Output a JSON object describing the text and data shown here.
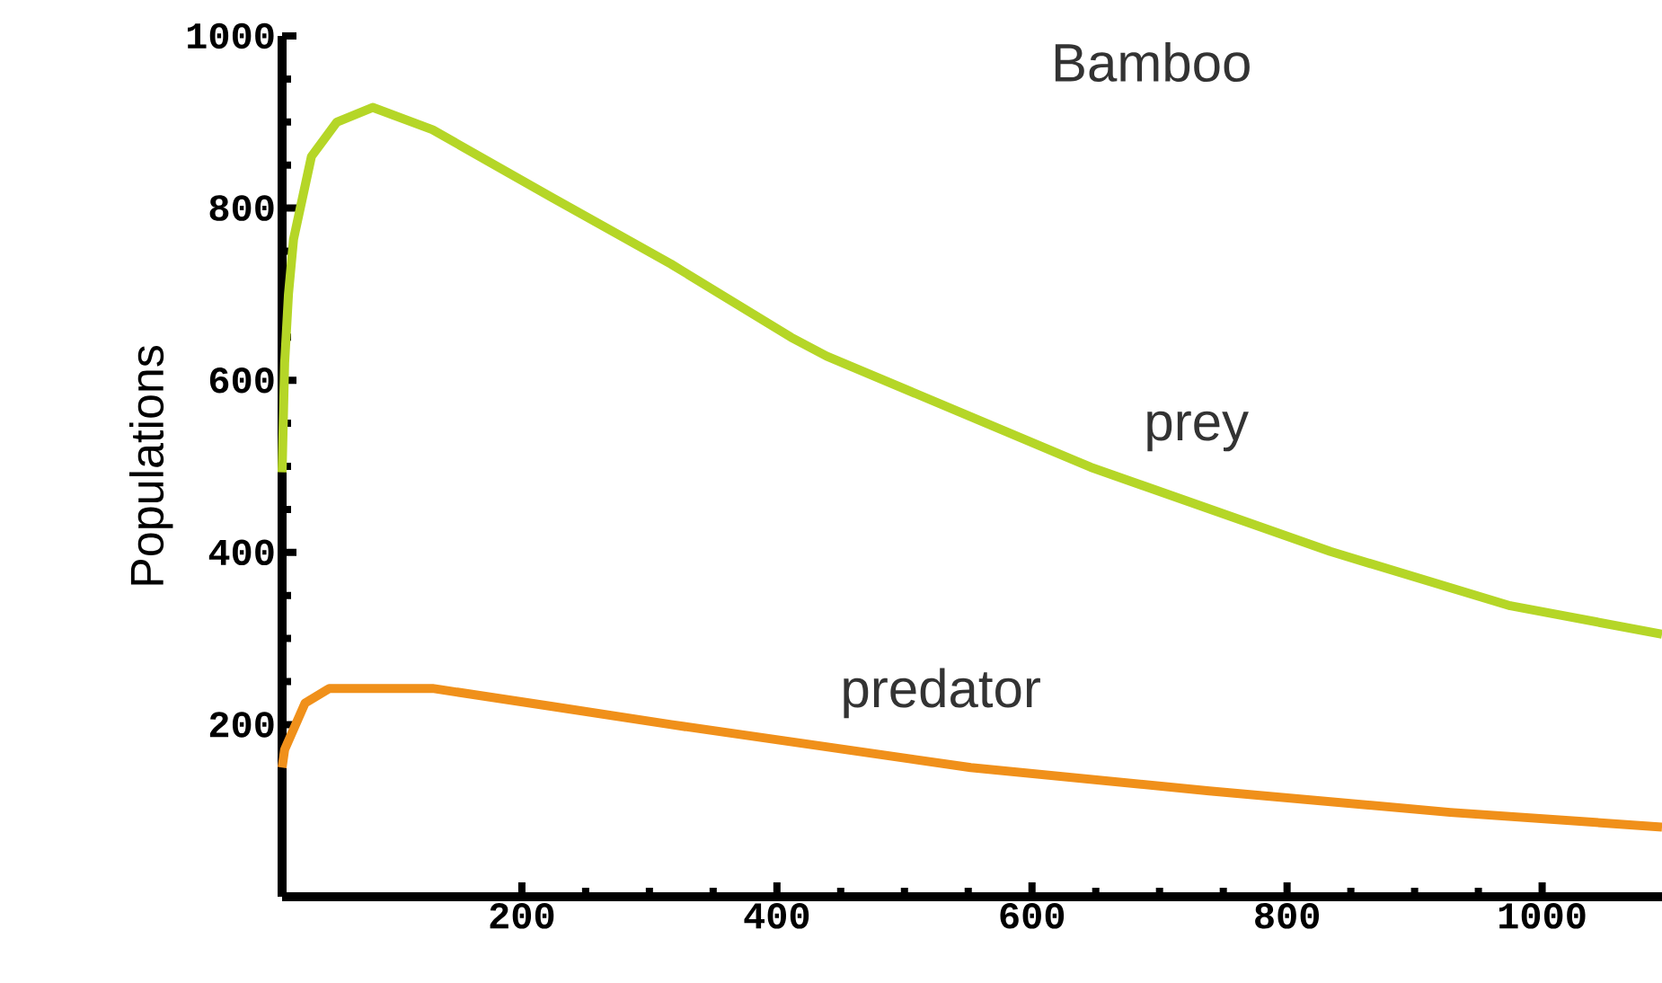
{
  "chart_data": {
    "type": "line",
    "title": "Bamboo",
    "ylabel": "Populations",
    "xlim": [
      12,
      1094
    ],
    "ylim": [
      0,
      1000
    ],
    "xticks": [
      200,
      400,
      600,
      800,
      1000
    ],
    "yticks": [
      200,
      400,
      600,
      800,
      1000
    ],
    "grid": false,
    "legend": false,
    "marker": "none",
    "line_style": "solid",
    "series": [
      {
        "name": "prey",
        "color": "#b5d627",
        "x": [
          12,
          14,
          17,
          21,
          35,
          55,
          83,
          130,
          224,
          317,
          411,
          439,
          646,
          834,
          975,
          1094
        ],
        "values": [
          493,
          620,
          700,
          764,
          860,
          900,
          917,
          891,
          812,
          735,
          650,
          628,
          499,
          401,
          338,
          305
        ]
      },
      {
        "name": "predator",
        "color": "#f0901a",
        "x": [
          12,
          14,
          30,
          49,
          130,
          224,
          317,
          435,
          552,
          739,
          928,
          1094
        ],
        "values": [
          150,
          171,
          225,
          242,
          242,
          221,
          200,
          175,
          150,
          123,
          98,
          81
        ]
      }
    ]
  }
}
